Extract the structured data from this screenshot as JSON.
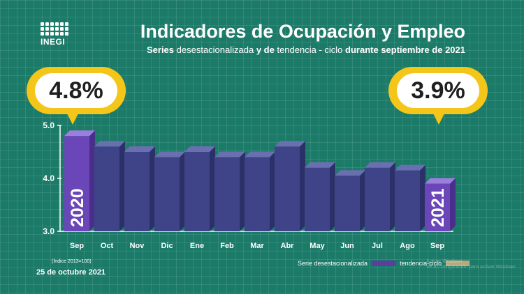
{
  "logo": {
    "name": "INEGI"
  },
  "header": {
    "title": "Indicadores de Ocupación y Empleo",
    "subtitle_parts": [
      "Series ",
      "desestacionalizada",
      " y de ",
      "tendencia - ciclo",
      " durante septiembre de 2021"
    ]
  },
  "callouts": {
    "first": "4.8%",
    "last": "3.9%"
  },
  "year_labels": {
    "first": "2020",
    "last": "2021"
  },
  "footer": {
    "note": "(Índice 2013=100)",
    "date": "25 de octubre 2021"
  },
  "legend": [
    {
      "label": "Serie desestacionalizada",
      "color": "#5b3f9e"
    },
    {
      "label": "tendencia-ciclo",
      "color": "#b8a87c"
    }
  ],
  "watermark": [
    "Activar Windows",
    "Ve a Configuración para activar Windows"
  ],
  "colors": {
    "bar_front": "#3e4487",
    "bar_side": "#2c3068",
    "bar_top": "#6a6fb0",
    "accent_front": "#6b46b8",
    "accent_side": "#4a2f8a",
    "accent_top": "#9a7fdc",
    "bubble": "#f4c619",
    "background": "#1b7a68"
  },
  "chart_data": {
    "type": "bar",
    "categories": [
      "Sep",
      "Oct",
      "Nov",
      "Dic",
      "Ene",
      "Feb",
      "Mar",
      "Abr",
      "May",
      "Jun",
      "Jul",
      "Ago",
      "Sep"
    ],
    "values": [
      4.8,
      4.6,
      4.5,
      4.4,
      4.5,
      4.4,
      4.4,
      4.6,
      4.2,
      4.05,
      4.2,
      4.15,
      3.9
    ],
    "yticks": [
      "3.0",
      "4.0",
      "5.0"
    ],
    "ylim": [
      3.0,
      5.0
    ],
    "highlight": [
      0,
      12
    ]
  }
}
